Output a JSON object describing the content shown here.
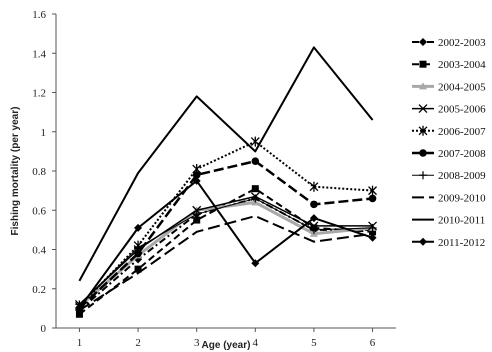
{
  "chart_data": {
    "type": "line",
    "title": "",
    "xlabel": "Age (year)",
    "ylabel": "Fishing mortality (per year)",
    "x": [
      1,
      2,
      3,
      4,
      5,
      6
    ],
    "xlim": [
      0.6,
      6.4
    ],
    "ylim": [
      0,
      1.6
    ],
    "x_ticks": [
      "1",
      "2",
      "3",
      "4",
      "5",
      "6"
    ],
    "y_ticks": [
      "0",
      "0.2",
      "0.4",
      "0.6",
      "0.8",
      "1",
      "1.2",
      "1.4",
      "1.6"
    ],
    "y_tick_values": [
      0,
      0.2,
      0.4,
      0.6,
      0.8,
      1.0,
      1.2,
      1.4,
      1.6
    ],
    "grid": false,
    "legend_position": "right",
    "series": [
      {
        "name": "2002-2003",
        "values": [
          0.09,
          0.35,
          0.58,
          0.66,
          0.5,
          0.5
        ],
        "color": "#000000",
        "dash": "dashdot",
        "marker": "diamond",
        "width": 2
      },
      {
        "name": "2003-2004",
        "values": [
          0.07,
          0.3,
          0.55,
          0.71,
          0.51,
          0.49
        ],
        "color": "#000000",
        "dash": "dash",
        "marker": "square",
        "width": 2
      },
      {
        "name": "2004-2005",
        "values": [
          0.11,
          0.37,
          0.6,
          0.64,
          0.48,
          0.51
        ],
        "color": "#a8a8a8",
        "dash": "solid",
        "marker": "triangle",
        "width": 3
      },
      {
        "name": "2005-2006",
        "values": [
          0.12,
          0.4,
          0.6,
          0.67,
          0.52,
          0.52
        ],
        "color": "#000000",
        "dash": "solid",
        "marker": "x",
        "width": 1.5
      },
      {
        "name": "2006-2007",
        "values": [
          0.11,
          0.42,
          0.81,
          0.95,
          0.72,
          0.7
        ],
        "color": "#000000",
        "dash": "dot",
        "marker": "star",
        "width": 2
      },
      {
        "name": "2007-2008",
        "values": [
          0.1,
          0.38,
          0.78,
          0.85,
          0.63,
          0.66
        ],
        "color": "#000000",
        "dash": "longdash",
        "marker": "circle",
        "width": 2.5
      },
      {
        "name": "2008-2009",
        "values": [
          0.12,
          0.41,
          0.58,
          0.66,
          0.5,
          0.51
        ],
        "color": "#000000",
        "dash": "solid",
        "marker": "plus",
        "width": 1
      },
      {
        "name": "2009-2010",
        "values": [
          0.09,
          0.28,
          0.49,
          0.57,
          0.44,
          0.48
        ],
        "color": "#000000",
        "dash": "dashlong",
        "marker": "none",
        "width": 2
      },
      {
        "name": "2010-2011",
        "values": [
          0.24,
          0.79,
          1.18,
          0.9,
          1.43,
          1.06
        ],
        "color": "#000000",
        "dash": "solid",
        "marker": "none",
        "width": 2
      },
      {
        "name": "2011-2012",
        "values": [
          0.1,
          0.51,
          0.75,
          0.33,
          0.56,
          0.46
        ],
        "color": "#000000",
        "dash": "solid",
        "marker": "diamond",
        "width": 2
      }
    ]
  }
}
